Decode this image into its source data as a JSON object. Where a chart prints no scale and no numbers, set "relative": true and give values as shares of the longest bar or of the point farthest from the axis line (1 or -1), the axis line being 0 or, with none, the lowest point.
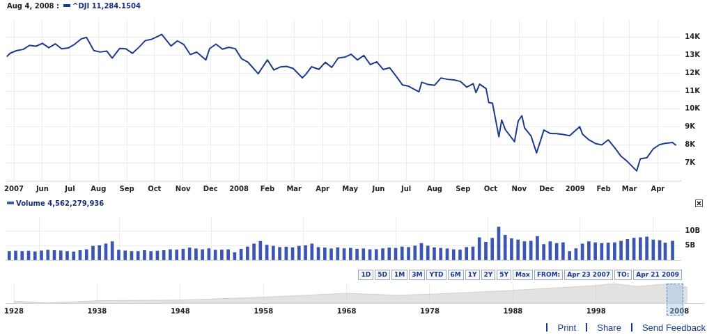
{
  "chart_data": [
    {
      "type": "line",
      "title": "Aug 4, 2008 :",
      "legend": "top left",
      "grid": true,
      "marker": "none",
      "line_style": "solid",
      "x": [
        "2007-04-23",
        "2007-04-27",
        "2007-05-04",
        "2007-05-11",
        "2007-05-18",
        "2007-05-25",
        "2007-06-01",
        "2007-06-08",
        "2007-06-15",
        "2007-06-22",
        "2007-06-29",
        "2007-07-06",
        "2007-07-13",
        "2007-07-19",
        "2007-07-27",
        "2007-08-03",
        "2007-08-10",
        "2007-08-16",
        "2007-08-24",
        "2007-08-31",
        "2007-09-07",
        "2007-09-14",
        "2007-09-21",
        "2007-09-28",
        "2007-10-05",
        "2007-10-09",
        "2007-10-19",
        "2007-10-26",
        "2007-11-02",
        "2007-11-09",
        "2007-11-16",
        "2007-11-26",
        "2007-11-30",
        "2007-12-07",
        "2007-12-14",
        "2007-12-21",
        "2007-12-28",
        "2008-01-04",
        "2008-01-11",
        "2008-01-22",
        "2008-01-25",
        "2008-02-01",
        "2008-02-08",
        "2008-02-15",
        "2008-02-22",
        "2008-02-29",
        "2008-03-10",
        "2008-03-14",
        "2008-03-20",
        "2008-03-28",
        "2008-04-04",
        "2008-04-11",
        "2008-04-18",
        "2008-04-25",
        "2008-05-02",
        "2008-05-09",
        "2008-05-16",
        "2008-05-23",
        "2008-05-30",
        "2008-06-06",
        "2008-06-13",
        "2008-06-20",
        "2008-06-27",
        "2008-07-03",
        "2008-07-15",
        "2008-07-18",
        "2008-07-25",
        "2008-08-01",
        "2008-08-08",
        "2008-08-15",
        "2008-08-22",
        "2008-08-29",
        "2008-09-05",
        "2008-09-12",
        "2008-09-15",
        "2008-09-19",
        "2008-09-26",
        "2008-09-29",
        "2008-10-03",
        "2008-10-10",
        "2008-10-13",
        "2008-10-17",
        "2008-10-27",
        "2008-10-31",
        "2008-11-04",
        "2008-11-07",
        "2008-11-14",
        "2008-11-20",
        "2008-11-28",
        "2008-12-05",
        "2008-12-12",
        "2008-12-19",
        "2008-12-26",
        "2009-01-06",
        "2009-01-09",
        "2009-01-16",
        "2009-01-23",
        "2009-01-30",
        "2009-02-06",
        "2009-02-13",
        "2009-02-20",
        "2009-02-27",
        "2009-03-09",
        "2009-03-13",
        "2009-03-20",
        "2009-03-27",
        "2009-04-03",
        "2009-04-09",
        "2009-04-17",
        "2009-04-21"
      ],
      "series": [
        {
          "name": "^DJI 11,284.1504",
          "color": "#1a3a8f",
          "values": [
            12919,
            13120,
            13264,
            13327,
            13556,
            13507,
            13668,
            13424,
            13639,
            13360,
            13408,
            13612,
            13908,
            14000,
            13265,
            13182,
            13239,
            12846,
            13379,
            13358,
            13113,
            13443,
            13821,
            13896,
            14066,
            14165,
            13522,
            13807,
            13596,
            13042,
            13177,
            12744,
            13372,
            13625,
            13340,
            13451,
            13366,
            12800,
            12606,
            11971,
            12207,
            12743,
            12183,
            12348,
            12381,
            12266,
            11740,
            11951,
            12361,
            12216,
            12610,
            12325,
            12849,
            12891,
            13058,
            12745,
            12986,
            12480,
            12638,
            12210,
            12307,
            11843,
            11347,
            11288,
            10963,
            11496,
            11370,
            11326,
            11734,
            11659,
            11628,
            11543,
            11220,
            11421,
            10917,
            11388,
            11143,
            10365,
            10325,
            8451,
            9387,
            8852,
            8176,
            9325,
            9625,
            8943,
            8497,
            7552,
            8829,
            8635,
            8629,
            8579,
            8515,
            9015,
            8599,
            8281,
            8077,
            8000,
            8280,
            7850,
            7366,
            7063,
            6547,
            7224,
            7278,
            7776,
            8018,
            8083,
            8131,
            7969
          ]
        }
      ],
      "xlim": [
        "2007-04-23",
        "2009-04-26"
      ],
      "xticks": [
        {
          "value": "2007-05-01",
          "label": "2007"
        },
        {
          "value": "2007-06-01",
          "label": "Jun"
        },
        {
          "value": "2007-07-01",
          "label": "Jul"
        },
        {
          "value": "2007-08-01",
          "label": "Aug"
        },
        {
          "value": "2007-09-01",
          "label": "Sep"
        },
        {
          "value": "2007-10-01",
          "label": "Oct"
        },
        {
          "value": "2007-11-01",
          "label": "Nov"
        },
        {
          "value": "2007-12-01",
          "label": "Dec"
        },
        {
          "value": "2008-01-01",
          "label": "2008"
        },
        {
          "value": "2008-02-01",
          "label": "Feb"
        },
        {
          "value": "2008-03-01",
          "label": "Mar"
        },
        {
          "value": "2008-04-01",
          "label": "Apr"
        },
        {
          "value": "2008-05-01",
          "label": "May"
        },
        {
          "value": "2008-06-01",
          "label": "Jun"
        },
        {
          "value": "2008-07-01",
          "label": "Jul"
        },
        {
          "value": "2008-08-01",
          "label": "Aug"
        },
        {
          "value": "2008-09-01",
          "label": "Sep"
        },
        {
          "value": "2008-10-01",
          "label": "Oct"
        },
        {
          "value": "2008-11-01",
          "label": "Nov"
        },
        {
          "value": "2008-12-01",
          "label": "Dec"
        },
        {
          "value": "2009-01-01",
          "label": "2009"
        },
        {
          "value": "2009-02-01",
          "label": "Feb"
        },
        {
          "value": "2009-03-01",
          "label": "Mar"
        },
        {
          "value": "2009-04-01",
          "label": "Apr"
        }
      ],
      "ylim": [
        6000,
        15000
      ],
      "yticks": [
        {
          "value": 7000,
          "label": "7K"
        },
        {
          "value": 8000,
          "label": "8K"
        },
        {
          "value": 9000,
          "label": "9K"
        },
        {
          "value": 10000,
          "label": "10K"
        },
        {
          "value": 11000,
          "label": "11K"
        },
        {
          "value": 12000,
          "label": "12K"
        },
        {
          "value": 13000,
          "label": "13K"
        },
        {
          "value": 14000,
          "label": "14K"
        }
      ]
    },
    {
      "type": "bar",
      "legend": "top left",
      "grid": true,
      "tick_labels": "y",
      "x": [
        "2007-04-27",
        "2007-05-04",
        "2007-05-11",
        "2007-05-18",
        "2007-05-25",
        "2007-06-01",
        "2007-06-08",
        "2007-06-15",
        "2007-06-22",
        "2007-06-29",
        "2007-07-06",
        "2007-07-13",
        "2007-07-20",
        "2007-07-27",
        "2007-08-03",
        "2007-08-10",
        "2007-08-17",
        "2007-08-24",
        "2007-08-31",
        "2007-09-07",
        "2007-09-14",
        "2007-09-21",
        "2007-09-28",
        "2007-10-05",
        "2007-10-12",
        "2007-10-19",
        "2007-10-26",
        "2007-11-02",
        "2007-11-09",
        "2007-11-16",
        "2007-11-23",
        "2007-11-30",
        "2007-12-07",
        "2007-12-14",
        "2007-12-21",
        "2007-12-28",
        "2008-01-04",
        "2008-01-11",
        "2008-01-18",
        "2008-01-25",
        "2008-02-01",
        "2008-02-08",
        "2008-02-15",
        "2008-02-22",
        "2008-02-29",
        "2008-03-07",
        "2008-03-14",
        "2008-03-21",
        "2008-03-28",
        "2008-04-04",
        "2008-04-11",
        "2008-04-18",
        "2008-04-25",
        "2008-05-02",
        "2008-05-09",
        "2008-05-16",
        "2008-05-23",
        "2008-05-30",
        "2008-06-06",
        "2008-06-13",
        "2008-06-20",
        "2008-06-27",
        "2008-07-04",
        "2008-07-11",
        "2008-07-18",
        "2008-07-25",
        "2008-08-01",
        "2008-08-08",
        "2008-08-15",
        "2008-08-22",
        "2008-08-29",
        "2008-09-05",
        "2008-09-12",
        "2008-09-19",
        "2008-09-26",
        "2008-10-03",
        "2008-10-10",
        "2008-10-17",
        "2008-10-24",
        "2008-10-31",
        "2008-11-07",
        "2008-11-14",
        "2008-11-21",
        "2008-11-28",
        "2008-12-05",
        "2008-12-12",
        "2008-12-19",
        "2008-12-26",
        "2009-01-02",
        "2009-01-09",
        "2009-01-16",
        "2009-01-23",
        "2009-01-30",
        "2009-02-06",
        "2009-02-13",
        "2009-02-20",
        "2009-02-27",
        "2009-03-06",
        "2009-03-13",
        "2009-03-20",
        "2009-03-27",
        "2009-04-03",
        "2009-04-09",
        "2009-04-17"
      ],
      "series": [
        {
          "name": "Volume 4,562,279,936",
          "color": "#3a56b0",
          "values": [
            3000000000,
            3100000000,
            3000000000,
            3100000000,
            2900000000,
            3200000000,
            3400000000,
            3300000000,
            3200000000,
            3000000000,
            2800000000,
            3300000000,
            3600000000,
            4800000000,
            5000000000,
            5600000000,
            6400000000,
            3400000000,
            3200000000,
            3000000000,
            3000000000,
            3300000000,
            3000000000,
            3100000000,
            3300000000,
            3600000000,
            3500000000,
            3800000000,
            4200000000,
            3900000000,
            3600000000,
            4000000000,
            3400000000,
            3500000000,
            3600000000,
            2600000000,
            3800000000,
            4600000000,
            5600000000,
            6500000000,
            5200000000,
            4800000000,
            4400000000,
            4500000000,
            4300000000,
            4800000000,
            5000000000,
            5600000000,
            4400000000,
            4200000000,
            3900000000,
            4300000000,
            4000000000,
            4100000000,
            3800000000,
            3900000000,
            3600000000,
            3700000000,
            4000000000,
            4200000000,
            4100000000,
            4600000000,
            4400000000,
            4900000000,
            5800000000,
            4900000000,
            4300000000,
            4100000000,
            3900000000,
            3600000000,
            3500000000,
            4400000000,
            4600000000,
            7800000000,
            6200000000,
            7600000000,
            11500000000,
            8600000000,
            7400000000,
            7000000000,
            6400000000,
            6600000000,
            8200000000,
            5400000000,
            6400000000,
            5800000000,
            6000000000,
            3000000000,
            4000000000,
            5600000000,
            6400000000,
            6000000000,
            5800000000,
            5900000000,
            6000000000,
            6600000000,
            7200000000,
            7600000000,
            7800000000,
            8000000000,
            7000000000,
            6800000000,
            5900000000,
            6600000000
          ]
        }
      ],
      "xlim": [
        "2007-04-23",
        "2009-04-26"
      ],
      "ylim": [
        0,
        15000000000
      ],
      "yticks": [
        {
          "value": 5000000000,
          "label": "5B"
        },
        {
          "value": 10000000000,
          "label": "10B"
        }
      ],
      "annotations": [
        "1D",
        "5D",
        "1M",
        "3M",
        "YTD",
        "6M",
        "1Y",
        "2Y",
        "5Y",
        "Max",
        "FROM:",
        "Apr 23 2007",
        "TO:",
        "Apr 21 2009"
      ]
    },
    {
      "type": "area",
      "relative": true,
      "grid": "x",
      "x": [
        1928,
        1932,
        1938,
        1948,
        1958,
        1968,
        1974,
        1978,
        1988,
        1998,
        2000,
        2003,
        2007,
        2009
      ],
      "series": [
        {
          "color": "#cfcfcf",
          "values": [
            0.1,
            0,
            0.12,
            0.15,
            0.3,
            0.5,
            0.4,
            0.45,
            0.65,
            0.9,
            1,
            0.85,
            1,
            0.8
          ]
        }
      ],
      "xlim": [
        1927,
        2011
      ],
      "xticks": [
        1928,
        1938,
        1948,
        1958,
        1968,
        1978,
        1988,
        1998,
        2008
      ],
      "annotations": [
        "Print",
        "Share",
        "Send Feedback"
      ]
    }
  ]
}
